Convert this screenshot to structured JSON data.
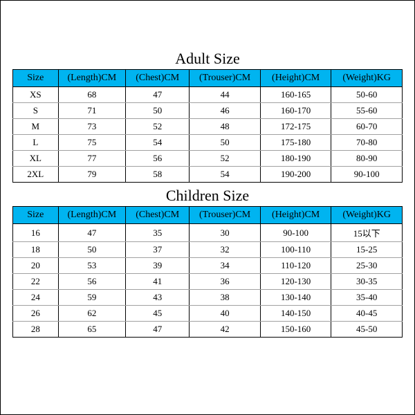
{
  "colors": {
    "header_bg": "#00b4f0",
    "border": "#000000",
    "row_divider": "#a0a0a0",
    "page_bg": "#ffffff",
    "text": "#000000"
  },
  "adult": {
    "title": "Adult Size",
    "columns": [
      "Size",
      "(Length)CM",
      "(Chest)CM",
      "(Trouser)CM",
      "(Height)CM",
      "(Weight)KG"
    ],
    "rows": [
      [
        "XS",
        "68",
        "47",
        "44",
        "160-165",
        "50-60"
      ],
      [
        "S",
        "71",
        "50",
        "46",
        "160-170",
        "55-60"
      ],
      [
        "M",
        "73",
        "52",
        "48",
        "172-175",
        "60-70"
      ],
      [
        "L",
        "75",
        "54",
        "50",
        "175-180",
        "70-80"
      ],
      [
        "XL",
        "77",
        "56",
        "52",
        "180-190",
        "80-90"
      ],
      [
        "2XL",
        "79",
        "58",
        "54",
        "190-200",
        "90-100"
      ]
    ]
  },
  "children": {
    "title": "Children Size",
    "columns": [
      "Size",
      "(Length)CM",
      "(Chest)CM",
      "(Trouser)CM",
      "(Height)CM",
      "(Weight)KG"
    ],
    "rows": [
      [
        "16",
        "47",
        "35",
        "30",
        "90-100",
        "15以下"
      ],
      [
        "18",
        "50",
        "37",
        "32",
        "100-110",
        "15-25"
      ],
      [
        "20",
        "53",
        "39",
        "34",
        "110-120",
        "25-30"
      ],
      [
        "22",
        "56",
        "41",
        "36",
        "120-130",
        "30-35"
      ],
      [
        "24",
        "59",
        "43",
        "38",
        "130-140",
        "35-40"
      ],
      [
        "26",
        "62",
        "45",
        "40",
        "140-150",
        "40-45"
      ],
      [
        "28",
        "65",
        "47",
        "42",
        "150-160",
        "45-50"
      ]
    ]
  }
}
